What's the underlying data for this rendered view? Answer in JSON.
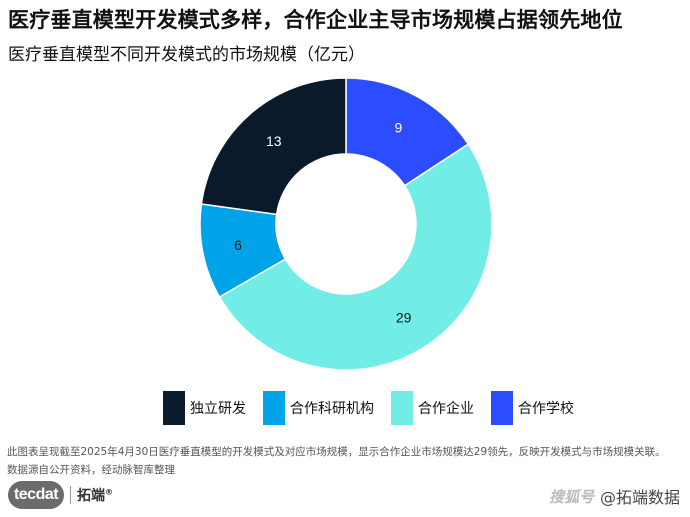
{
  "header": {
    "title": "医疗垂直模型开发模式多样，合作企业主导市场规模占据领先地位",
    "subtitle": "医疗垂直模型不同开发模式的市场规模（亿元）"
  },
  "chart_data": {
    "type": "donut",
    "unit": "亿元",
    "series": [
      {
        "name": "独立研发",
        "value": 13,
        "color": "#0a1a2a"
      },
      {
        "name": "合作科研机构",
        "value": 6,
        "color": "#00a2e8"
      },
      {
        "name": "合作企业",
        "value": 29,
        "color": "#72ece6"
      },
      {
        "name": "合作学校",
        "value": 9,
        "color": "#2b4dff"
      }
    ],
    "legend_position": "bottom"
  },
  "footnote": {
    "line1": "此图表呈现截至2025年4月30日医疗垂直模型的开发模式及对应市场规模，显示合作企业市场规模达29领先，反映开发模式与市场规模关联。",
    "line2": "数据源自公开资料，经动脉智库整理"
  },
  "brand": {
    "logo_text": "tecdat",
    "name": "拓端",
    "reg": "®"
  },
  "watermark": {
    "mark": "搜狐号",
    "text": "@拓端数据"
  }
}
